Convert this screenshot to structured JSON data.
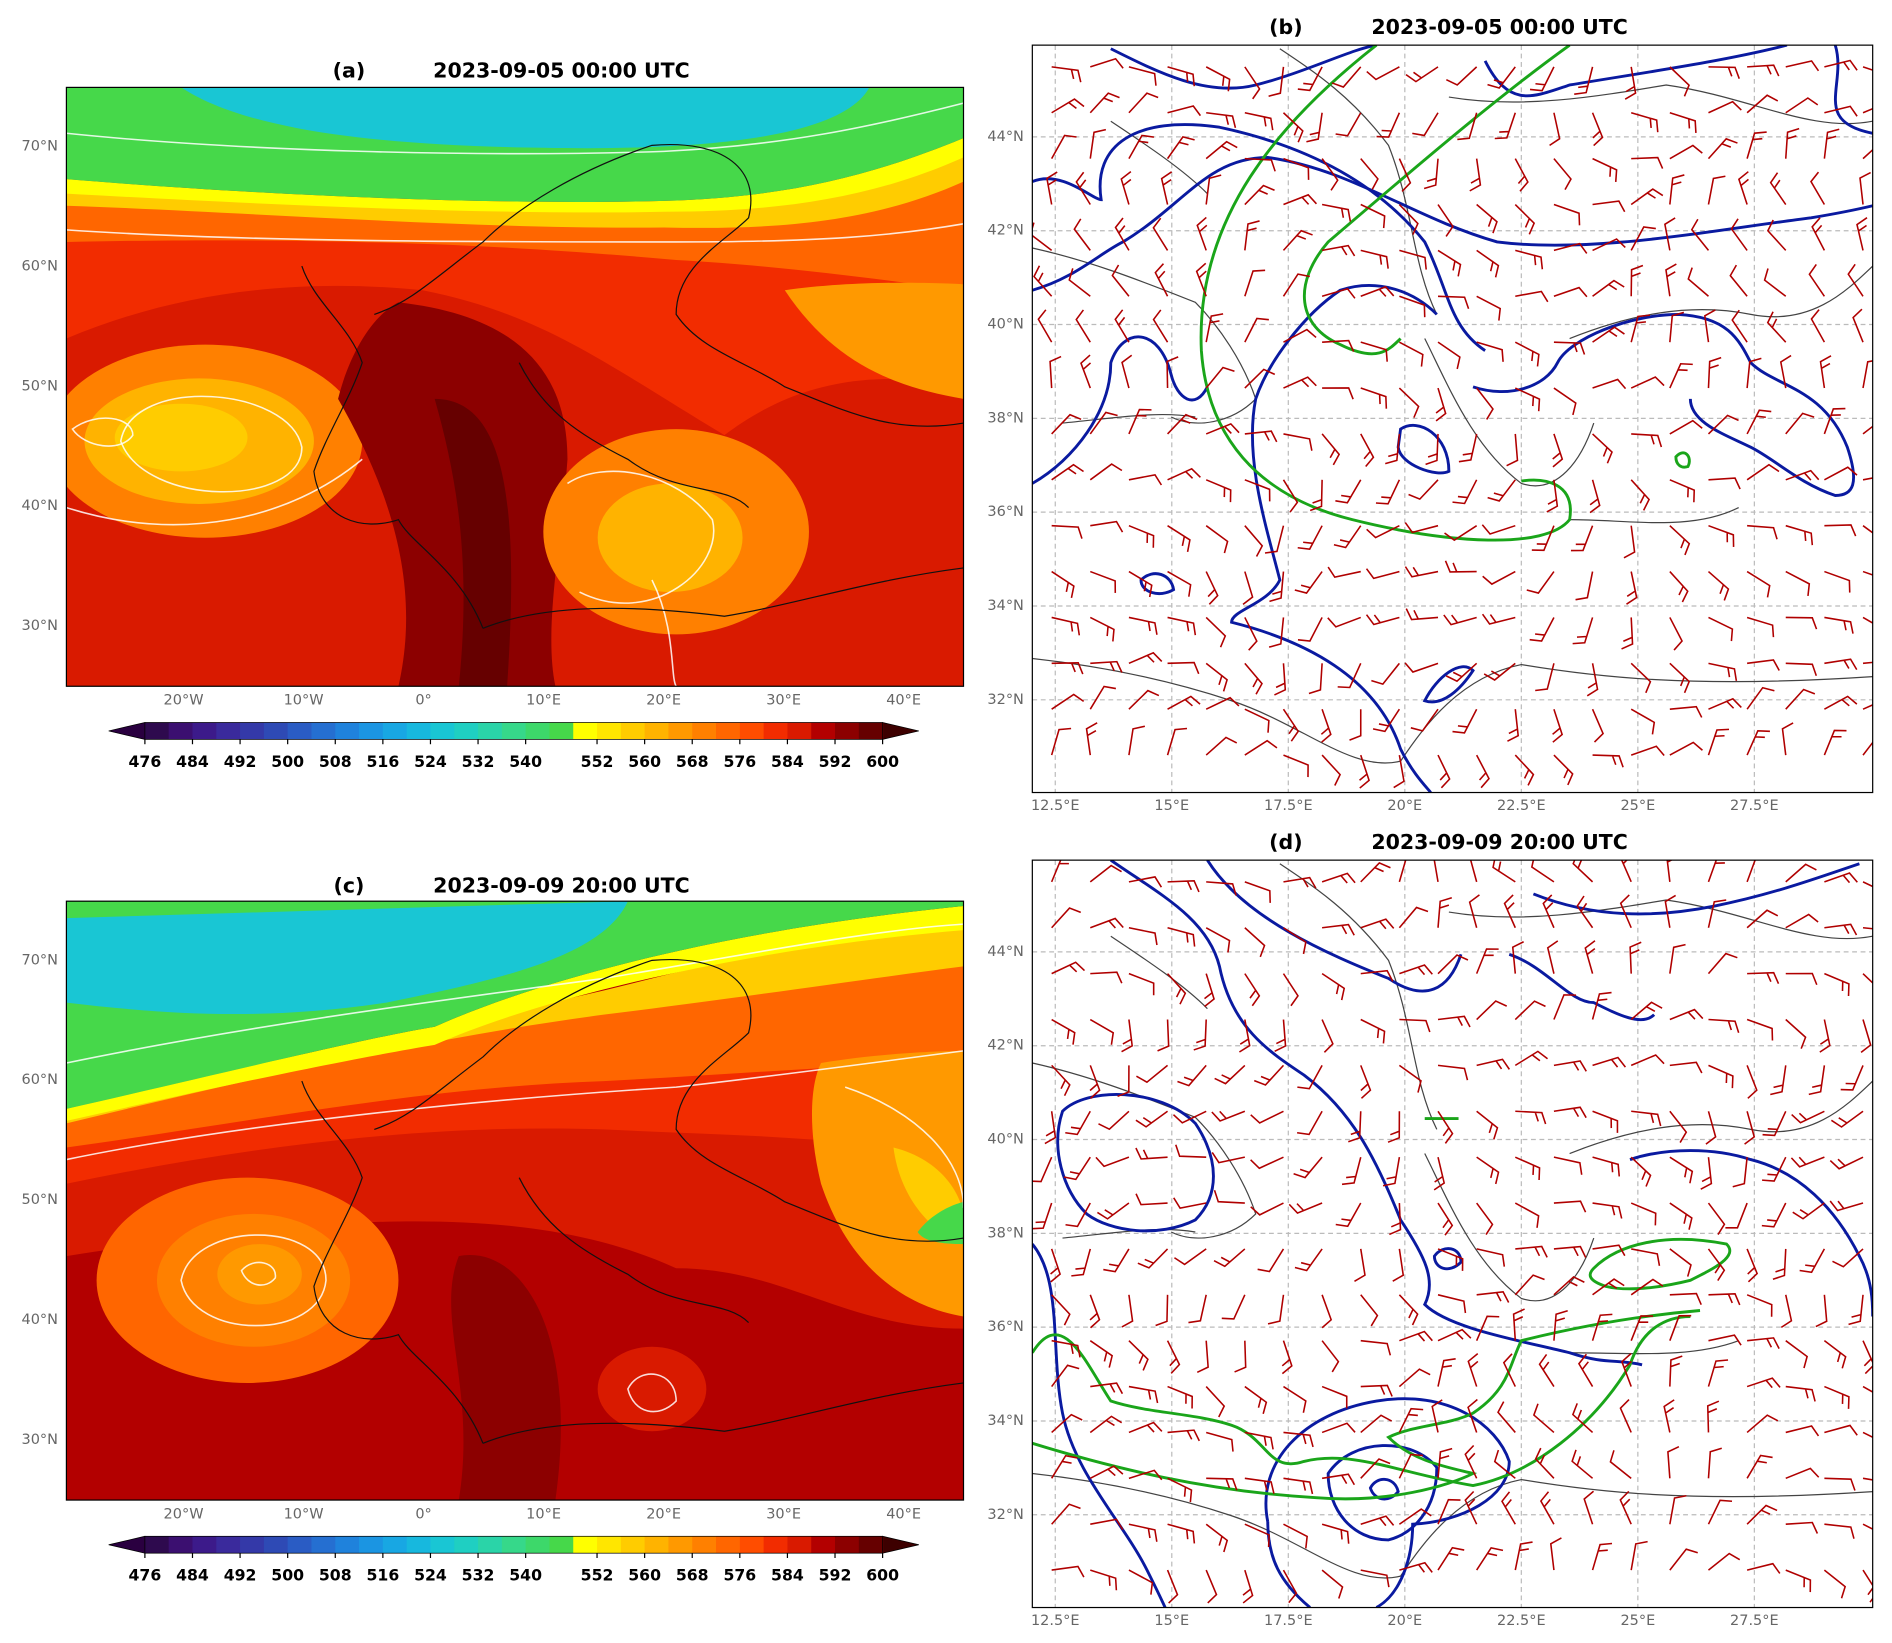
{
  "panels": [
    {
      "label": "(a)",
      "title": "2023-09-05 00:00 UTC",
      "xticks": [
        "20°W",
        "10°W",
        "0°",
        "10°E",
        "20°E",
        "30°E",
        "40°E"
      ],
      "yticks": [
        "70°N",
        "60°N",
        "50°N",
        "40°N",
        "30°N"
      ],
      "colorbar": {
        "ticks": [
          476,
          484,
          492,
          500,
          508,
          516,
          524,
          532,
          540,
          552,
          560,
          568,
          576,
          584,
          592,
          600
        ],
        "colors": [
          "#2e0a4e",
          "#3b0f70",
          "#3c1a8a",
          "#3a2a9c",
          "#3439a8",
          "#2e4ab5",
          "#2a5cc4",
          "#256fd1",
          "#1f82dc",
          "#1b95e2",
          "#18a7e3",
          "#17b8de",
          "#19c6d4",
          "#1fcfc2",
          "#2ad4a8",
          "#36d88a",
          "#3dd86a",
          "#46d84a",
          "#ffff00",
          "#ffe600",
          "#ffcc00",
          "#ffb300",
          "#ff9900",
          "#ff8000",
          "#ff6600",
          "#ff4d00",
          "#f22c00",
          "#d91a00",
          "#b30000",
          "#8c0000",
          "#660000"
        ],
        "under": "#2a0040",
        "over": "#3d0000"
      }
    },
    {
      "label": "(b)",
      "title": "2023-09-05 00:00 UTC",
      "xticks": [
        "12.5°E",
        "15°E",
        "17.5°E",
        "20°E",
        "22.5°E",
        "25°E",
        "27.5°E"
      ],
      "yticks": [
        "44°N",
        "42°N",
        "40°N",
        "38°N",
        "36°N",
        "34°N",
        "32°N"
      ]
    },
    {
      "label": "(c)",
      "title": "2023-09-09 20:00 UTC",
      "xticks": [
        "20°W",
        "10°W",
        "0°",
        "10°E",
        "20°E",
        "30°E",
        "40°E"
      ],
      "yticks": [
        "70°N",
        "60°N",
        "50°N",
        "40°N",
        "30°N"
      ],
      "colorbar": {
        "ticks": [
          476,
          484,
          492,
          500,
          508,
          516,
          524,
          532,
          540,
          552,
          560,
          568,
          576,
          584,
          592,
          600
        ],
        "colors": [
          "#2e0a4e",
          "#3b0f70",
          "#3c1a8a",
          "#3a2a9c",
          "#3439a8",
          "#2e4ab5",
          "#2a5cc4",
          "#256fd1",
          "#1f82dc",
          "#1b95e2",
          "#18a7e3",
          "#17b8de",
          "#19c6d4",
          "#1fcfc2",
          "#2ad4a8",
          "#36d88a",
          "#3dd86a",
          "#46d84a",
          "#ffff00",
          "#ffe600",
          "#ffcc00",
          "#ffb300",
          "#ff9900",
          "#ff8000",
          "#ff6600",
          "#ff4d00",
          "#f22c00",
          "#d91a00",
          "#b30000",
          "#8c0000",
          "#660000"
        ],
        "under": "#2a0040",
        "over": "#3d0000"
      }
    },
    {
      "label": "(d)",
      "title": "2023-09-09 20:00 UTC",
      "xticks": [
        "12.5°E",
        "15°E",
        "17.5°E",
        "20°E",
        "22.5°E",
        "25°E",
        "27.5°E"
      ],
      "yticks": [
        "44°N",
        "42°N",
        "40°N",
        "38°N",
        "36°N",
        "34°N",
        "32°N"
      ]
    }
  ]
}
